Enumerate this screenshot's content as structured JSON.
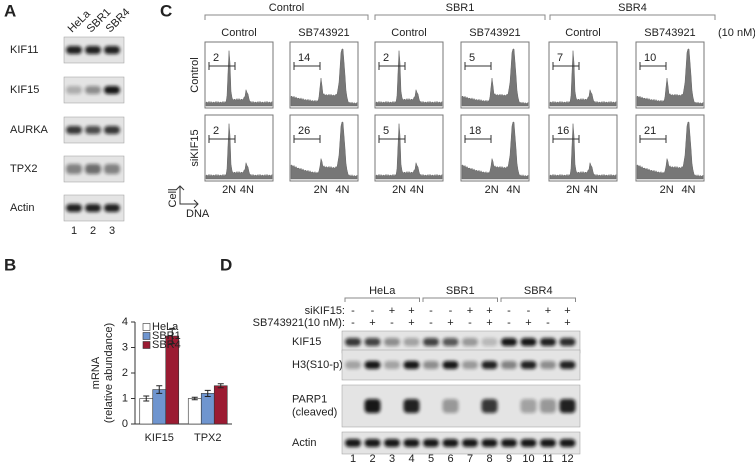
{
  "panel_letters": [
    "A",
    "B",
    "C",
    "D"
  ],
  "panel_a": {
    "lanes": [
      "HeLa",
      "SBR1",
      "SBR4"
    ],
    "blots": [
      "KIF11",
      "KIF15",
      "AURKA",
      "TPX2",
      "Actin"
    ],
    "lane_numbers": [
      1,
      2,
      3
    ]
  },
  "panel_c": {
    "groups": [
      "Control",
      "SBR1",
      "SBR4"
    ],
    "conditions": [
      "Control",
      "SB743921",
      "Control",
      "SB743921",
      "Control",
      "SB743921"
    ],
    "unit": "(10 nM)",
    "rows": [
      {
        "label": "Control",
        "gate_values": [
          2,
          14,
          2,
          5,
          7,
          10
        ]
      },
      {
        "label": "siKIF15",
        "gate_values": [
          2,
          26,
          5,
          18,
          16,
          21
        ]
      }
    ],
    "x_labels": [
      "2N",
      "4N"
    ],
    "axis_y": "Cell",
    "axis_x": "DNA"
  },
  "chart_data": {
    "type": "bar",
    "y_label": [
      "mRNA",
      "(relative abundance)"
    ],
    "categories": [
      "KIF15",
      "TPX2"
    ],
    "series": [
      {
        "name": "HeLa",
        "color": "#ffffff",
        "values": [
          1.0,
          1.0
        ],
        "errors": [
          0.1,
          0.05
        ]
      },
      {
        "name": "SBR1",
        "color": "#6f95cf",
        "values": [
          1.35,
          1.2
        ],
        "errors": [
          0.15,
          0.12
        ]
      },
      {
        "name": "SBR4",
        "color": "#9b1b32",
        "values": [
          3.45,
          1.5
        ],
        "errors": [
          0.3,
          0.08
        ]
      }
    ],
    "ylim": [
      0,
      4
    ],
    "yticks": [
      0,
      1,
      2,
      3,
      4
    ],
    "legend": "upper left"
  },
  "panel_d": {
    "groups": [
      "HeLa",
      "SBR1",
      "SBR4"
    ],
    "treatments": [
      {
        "label": "siKIF15:",
        "signs": [
          "-",
          "-",
          "+",
          "+",
          "-",
          "-",
          "+",
          "+",
          "-",
          "-",
          "+",
          "+"
        ]
      },
      {
        "label": "SB743921(10 nM):",
        "signs": [
          "-",
          "+",
          "-",
          "+",
          "-",
          "+",
          "-",
          "+",
          "-",
          "+",
          "-",
          "+"
        ]
      }
    ],
    "blots": [
      [
        "KIF15"
      ],
      [
        "H3(S10-p)"
      ],
      [
        "PARP1",
        "(cleaved)"
      ],
      [
        "Actin"
      ]
    ],
    "lane_numbers": [
      1,
      2,
      3,
      4,
      5,
      6,
      7,
      8,
      9,
      10,
      11,
      12
    ]
  }
}
